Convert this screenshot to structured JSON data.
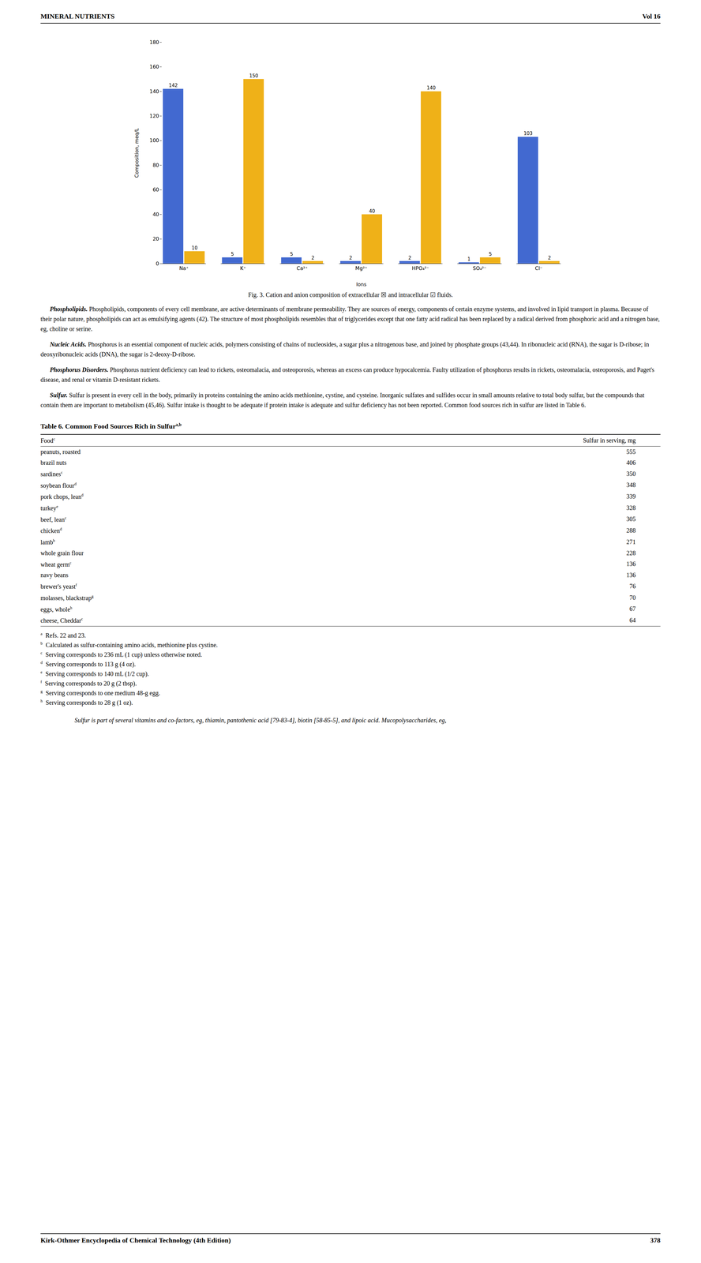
{
  "chart_data": {
    "type": "bar",
    "categories": [
      "Na⁺",
      "K⁺",
      "Ca²⁺",
      "Mg²⁺",
      "HPO₄²⁻",
      "SO₄²⁻",
      "Cl⁻"
    ],
    "series": [
      {
        "name": "extracellular",
        "values": [
          142,
          5,
          5,
          2,
          2,
          1,
          103
        ]
      },
      {
        "name": "intracellular",
        "values": [
          10,
          150,
          2,
          40,
          140,
          5,
          2
        ]
      }
    ],
    "xlabel": "Ions",
    "ylabel": "Composition, meq/L",
    "ylim": [
      0,
      180
    ],
    "yticks": [
      0,
      20,
      40,
      60,
      80,
      100,
      120,
      140,
      160,
      180
    ],
    "grid": false,
    "data_labels": true,
    "annotations": [
      "MINERAL NUTRIENTS",
      "Vol 16",
      "Fig. 3. Cation and anion composition of extracellular ☒ and intracellular ☑ fluids.",
      [
        [
          "Phospholipids.",
          "Phospholipids, components of every cell membrane, are active determinants of membrane permeability. They are sources of energy, components of certain enzyme systems, and involved in lipid transport in plasma. Because of their polar nature, phospholipids can act as emulsifying agents (42). The structure of most phospholipids resembles that of triglycerides except that one fatty acid radical has been replaced by a radical derived from phosphoric acid and a nitrogen base, eg, choline or serine."
        ],
        [
          "Nucleic Acids.",
          "Phosphorus is an essential component of nucleic acids, polymers consisting of chains of nucleosides, a sugar plus a nitrogenous base, and joined by phosphate groups (43,44). In ribonucleic acid (RNA), the sugar is D-ribose; in deoxyribonucleic acids (DNA), the sugar is 2-deoxy-D-ribose."
        ],
        [
          "Phosphorus Disorders.",
          "Phosphorus nutrient deficiency can lead to rickets, osteomalacia, and osteoporosis, whereas an excess can produce hypocalcemia. Faulty utilization of phosphorus results in rickets, osteomalacia, osteoporosis, and Paget's disease, and renal or vitamin D-resistant rickets."
        ],
        [
          "Sulfur.",
          "Sulfur is present in every cell in the body, primarily in proteins containing the amino acids methionine, cystine, and cysteine. Inorganic sulfates and sulfides occur in small amounts relative to total body sulfur, but the compounds that contain them are important to metabolism (45,46). Sulfur intake is thought to be adequate if protein intake is adequate and sulfur deficiency has not been reported. Common food sources rich in sulfur are listed in Table 6."
        ]
      ],
      "Table 6. Common Food Sources Rich in Sulfur",
      "a,b",
      [
        "Food",
        "c",
        "Sulfur in serving, mg"
      ],
      [
        [
          "peanuts, roasted",
          "555"
        ],
        [
          "brazil nuts",
          "406"
        ],
        [
          "sardines",
          "c",
          "350"
        ],
        [
          "soybean flour",
          "d",
          "348"
        ],
        [
          "pork chops, lean",
          "d",
          "339"
        ],
        [
          "turkey",
          "e",
          "328"
        ],
        [
          "beef, lean",
          "c",
          "305"
        ],
        [
          "chicken",
          "d",
          "288"
        ],
        [
          "lamb",
          "b",
          "271"
        ],
        [
          "whole grain flour",
          "228"
        ],
        [
          "wheat germ",
          "c",
          "136"
        ],
        [
          "navy beans",
          "136"
        ],
        [
          "brewer's yeast",
          "f",
          "76"
        ],
        [
          "molasses, blackstrap",
          "g",
          "70"
        ],
        [
          "eggs, whole",
          "h",
          "67"
        ],
        [
          "cheese, Cheddar",
          "c",
          "64"
        ]
      ],
      [
        [
          "a",
          "Refs. 22 and 23."
        ],
        [
          "b",
          "Calculated as sulfur-containing amino acids, methionine plus cystine."
        ],
        [
          "c",
          "Serving corresponds to 236 mL (1 cup) unless otherwise noted."
        ],
        [
          "d",
          "Serving corresponds to 113 g (4 oz)."
        ],
        [
          "e",
          "Serving corresponds to 140 mL (1/2 cup)."
        ],
        [
          "f",
          "Serving corresponds to 20 g (2 tbsp)."
        ],
        [
          "g",
          "Serving corresponds to one medium 48-g egg."
        ],
        [
          "h",
          "Serving corresponds to 28 g (1 oz)."
        ]
      ],
      "Sulfur is part of several vitamins and co-factors, eg, thiamin, pantothenic acid [79-83-4], biotin [58-85-5], and lipoic acid. Mucopolysaccharides, eg,",
      "Kirk-Othmer Encyclopedia of Chemical Technology (4th Edition)",
      "378"
    ]
  }
}
